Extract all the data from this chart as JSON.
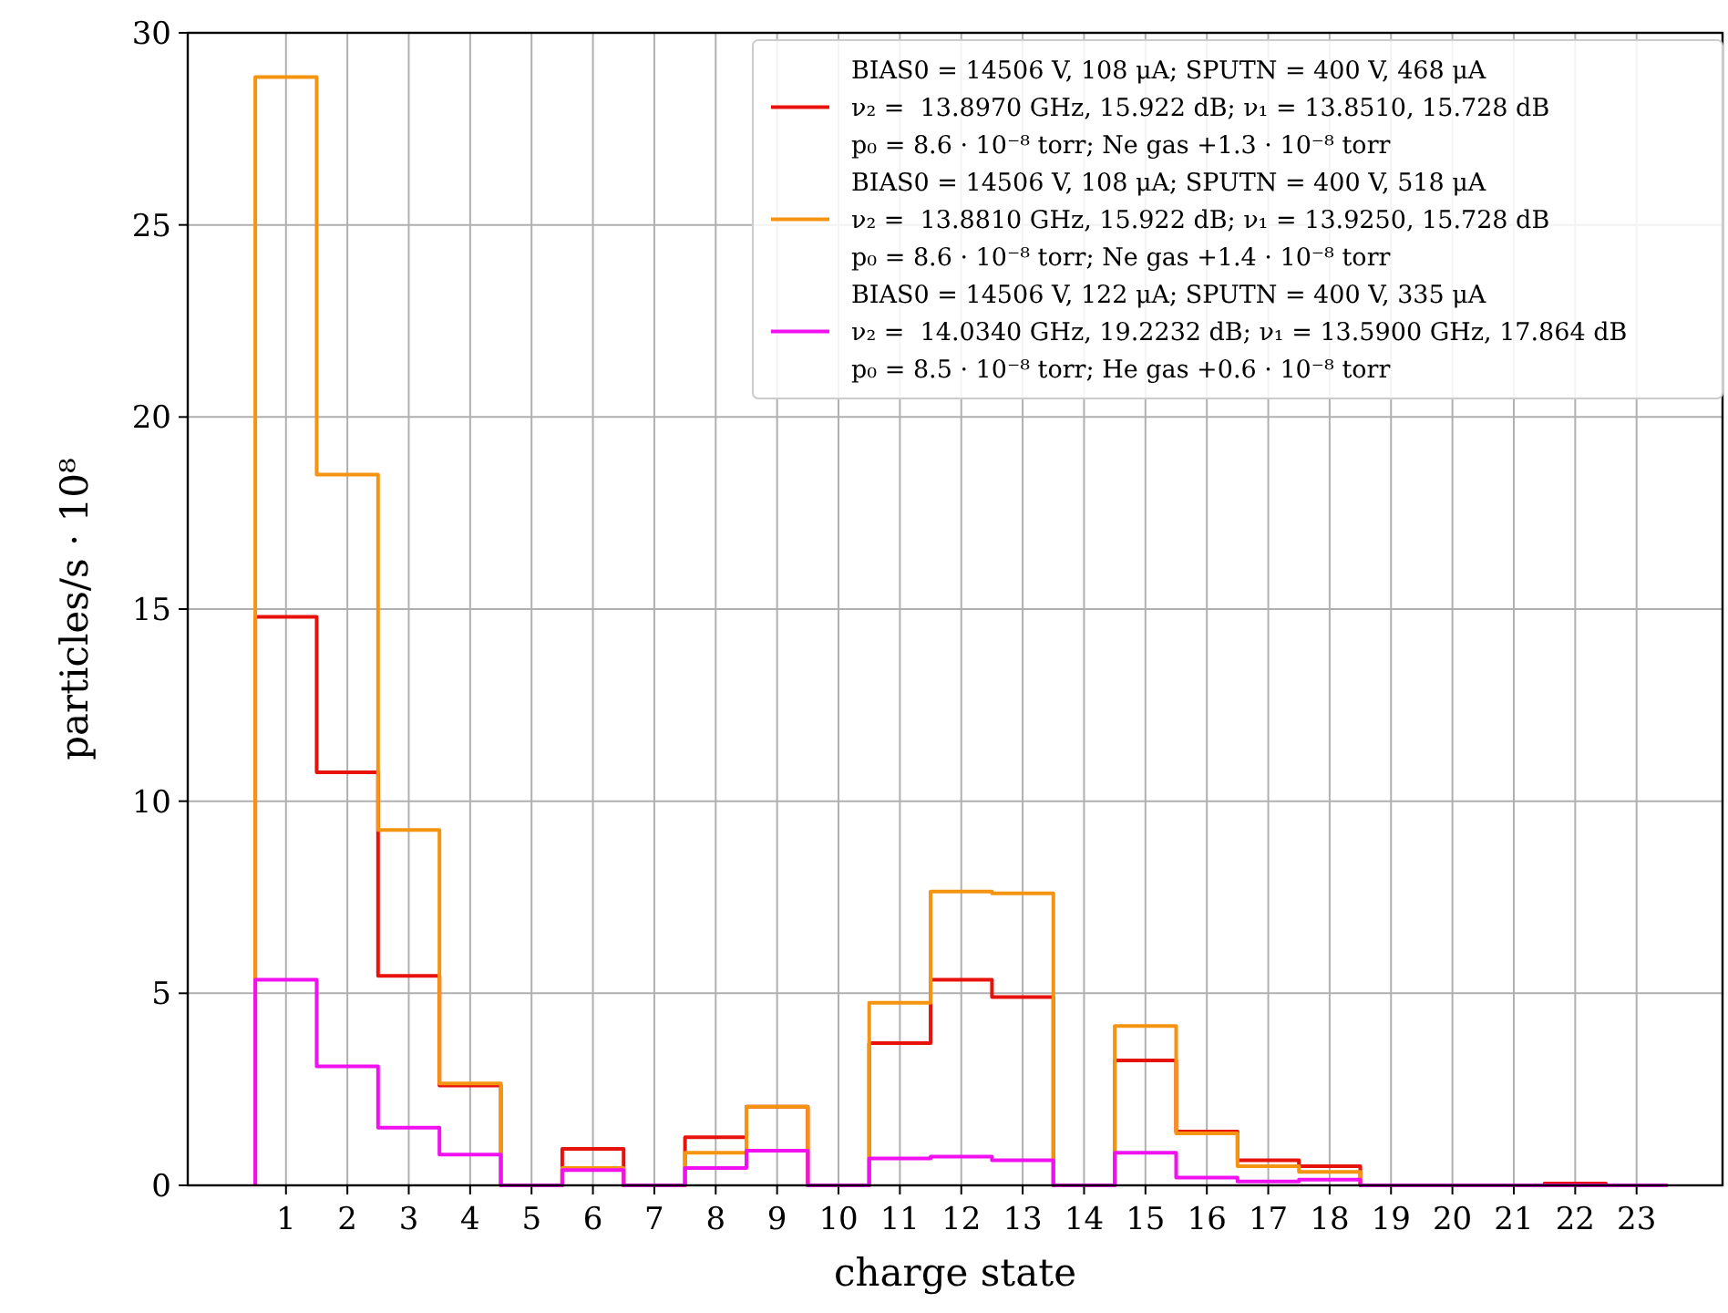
{
  "chart_data": {
    "type": "histogram",
    "xlabel": "charge state",
    "ylabel": "particles/s · 10⁸",
    "bins": [
      0.5,
      1.5,
      2.5,
      3.5,
      4.5,
      5.5,
      6.5,
      7.5,
      8.5,
      9.5,
      10.5,
      11.5,
      12.5,
      13.5,
      14.5,
      15.5,
      16.5,
      17.5,
      18.5,
      19.5,
      20.5,
      21.5,
      22.5,
      23.5
    ],
    "series": [
      {
        "name": "BIAS0 = 14506 V, 108 μA; SPUTN = 400 V, 468 μA\nν₂ =  13.8970 GHz, 15.922 dB; ν₁ = 13.8510, 15.728 dB\np₀ = 8.6 · 10⁻⁸ torr; Ne gas +1.3 · 10⁻⁸ torr",
        "color": "#e8120c",
        "values": [
          14.8,
          10.75,
          5.45,
          2.6,
          0,
          0.95,
          0,
          1.25,
          2.05,
          0,
          3.7,
          5.35,
          4.9,
          0,
          3.25,
          1.4,
          0.65,
          0.5,
          0,
          0,
          0,
          0.05,
          0
        ]
      },
      {
        "name": "BIAS0 = 14506 V, 108 μA; SPUTN = 400 V, 518 μA\nν₂ =  13.8810 GHz, 15.922 dB; ν₁ = 13.9250, 15.728 dB\np₀ = 8.6 · 10⁻⁸ torr; Ne gas +1.4 · 10⁻⁸ torr",
        "color": "#f59410",
        "values": [
          28.85,
          18.5,
          9.25,
          2.65,
          0,
          0.45,
          0,
          0.85,
          2.05,
          0,
          4.75,
          7.65,
          7.6,
          0,
          4.15,
          1.35,
          0.5,
          0.35,
          0,
          0,
          0,
          0,
          0
        ]
      },
      {
        "name": "BIAS0 = 14506 V, 122 μA; SPUTN = 400 V, 335 μA\nν₂ =  14.0340 GHz, 19.2232 dB; ν₁ = 13.5900 GHz, 17.864 dB\np₀ = 8.5 · 10⁻⁸ torr; He gas +0.6 · 10⁻⁸ torr",
        "color": "#f010f0",
        "values": [
          5.35,
          3.1,
          1.5,
          0.8,
          0,
          0.4,
          0,
          0.45,
          0.9,
          0,
          0.7,
          0.75,
          0.65,
          0,
          0.85,
          0.2,
          0.1,
          0.15,
          0,
          0,
          0,
          0,
          0
        ]
      }
    ],
    "xlim": [
      -0.6,
      24.4
    ],
    "ylim": [
      0,
      30
    ],
    "xticks": [
      1,
      2,
      3,
      4,
      5,
      6,
      7,
      8,
      9,
      10,
      11,
      12,
      13,
      14,
      15,
      16,
      17,
      18,
      19,
      20,
      21,
      22,
      23
    ],
    "yticks": [
      0,
      5,
      10,
      15,
      20,
      25,
      30
    ],
    "grid": true,
    "legend": "top right"
  }
}
